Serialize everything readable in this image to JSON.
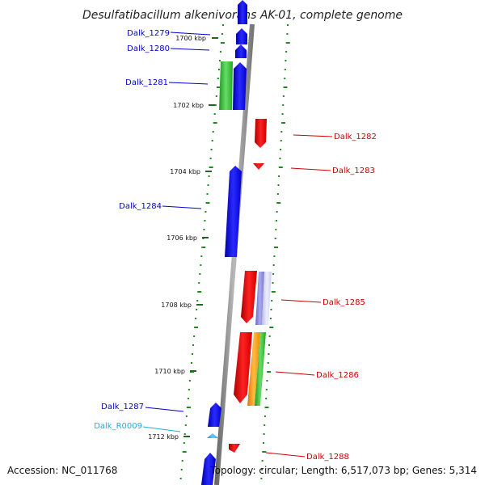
{
  "title": "Desulfatibacillum alkenivorans AK-01, complete genome",
  "footer": {
    "accession": "Accession: NC_011768",
    "topology": "Topology: circular; Length: 6,517,073 bp; Genes: 5,314"
  },
  "ticks": [
    "1700 kbp",
    "1702 kbp",
    "1704 kbp",
    "1706 kbp",
    "1708 kbp",
    "1710 kbp",
    "1712 kbp"
  ],
  "genes": [
    {
      "id": "Dalk_1279",
      "strand": "-",
      "color": "#0000dd"
    },
    {
      "id": "Dalk_1280",
      "strand": "-",
      "color": "#0000dd"
    },
    {
      "id": "Dalk_1281",
      "strand": "-",
      "color": "#0000dd"
    },
    {
      "id": "Dalk_1282",
      "strand": "+",
      "color": "#cc0000"
    },
    {
      "id": "Dalk_1283",
      "strand": "+",
      "color": "#cc0000"
    },
    {
      "id": "Dalk_1284",
      "strand": "-",
      "color": "#0000dd"
    },
    {
      "id": "Dalk_1285",
      "strand": "+",
      "color": "#cc0000"
    },
    {
      "id": "Dalk_1286",
      "strand": "+",
      "color": "#cc0000"
    },
    {
      "id": "Dalk_1287",
      "strand": "-",
      "color": "#0000dd"
    },
    {
      "id": "Dalk_R0009",
      "strand": "-",
      "color": "#22aadd"
    },
    {
      "id": "Dalk_1288",
      "strand": "+",
      "color": "#cc0000"
    }
  ],
  "colors": {
    "backbone": "#888888",
    "dot_track": "#228822",
    "forward": "#cc0000",
    "reverse": "#0000dd",
    "rna": "#22aadd",
    "feature_green": "#33bb33",
    "feature_orange": "#ff9900",
    "feature_purple": "#8888dd",
    "feature_lavender": "#ccccee",
    "feature_gray": "#bbbbbb"
  }
}
